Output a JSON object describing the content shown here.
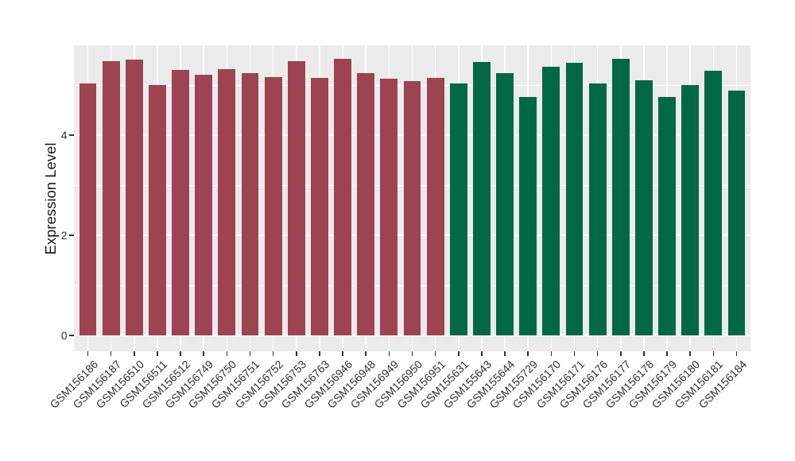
{
  "chart_data": {
    "type": "bar",
    "title": "",
    "xlabel": "",
    "ylabel": "Expression Level",
    "categories": [
      "GSM156186",
      "GSM156187",
      "GSM156510",
      "GSM156511",
      "GSM156512",
      "GSM156749",
      "GSM156750",
      "GSM156751",
      "GSM156752",
      "GSM156753",
      "GSM156763",
      "GSM156946",
      "GSM156948",
      "GSM156949",
      "GSM156950",
      "GSM156951",
      "GSM155631",
      "GSM155643",
      "GSM155644",
      "GSM155729",
      "GSM156170",
      "GSM156171",
      "GSM156176",
      "GSM156177",
      "GSM156178",
      "GSM156179",
      "GSM156180",
      "GSM156181",
      "GSM156184"
    ],
    "values": [
      5.04,
      5.48,
      5.51,
      5.01,
      5.31,
      5.21,
      5.33,
      5.24,
      5.17,
      5.49,
      5.15,
      5.53,
      5.25,
      5.13,
      5.08,
      5.15,
      5.03,
      5.47,
      5.25,
      4.76,
      5.37,
      5.45,
      5.04,
      5.53,
      5.1,
      4.77,
      5.01,
      5.29,
      4.89
    ],
    "groups": [
      {
        "color": "#9d4351",
        "count": 16
      },
      {
        "color": "#006845",
        "count": 13
      }
    ],
    "y_ticks": [
      0,
      2,
      4
    ],
    "y_minor_ticks": [
      1,
      3,
      5
    ],
    "ylim": [
      -0.32,
      5.8
    ],
    "legend": "none",
    "grid": "on",
    "panel_bg": "#ebebeb",
    "grid_color": "#ffffff",
    "axis_text_color": "#333333",
    "axis_title_color": "#1a1a1a"
  }
}
